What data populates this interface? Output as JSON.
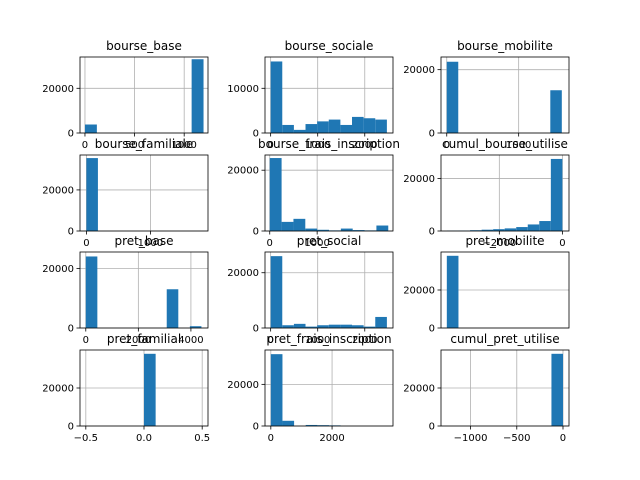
{
  "chart_data": [
    {
      "type": "bar",
      "title": "bourse_base",
      "grid": true,
      "xlim": [
        -50,
        1240
      ],
      "ylim": [
        0,
        34000
      ],
      "xticks": [
        0,
        500,
        1000
      ],
      "xtick_labels": [
        "0",
        "500",
        "1000"
      ],
      "yticks": [
        0,
        20000
      ],
      "ytick_labels": [
        "0",
        "20000"
      ],
      "bars": [
        {
          "x0": 0,
          "x1": 120,
          "value": 3800
        },
        {
          "x0": 1075,
          "x1": 1195,
          "value": 33000
        }
      ]
    },
    {
      "type": "bar",
      "title": "bourse_sociale",
      "grid": true,
      "xlim": [
        -120,
        2600
      ],
      "ylim": [
        0,
        17000
      ],
      "xticks": [
        0,
        1000,
        2000
      ],
      "xtick_labels": [
        "0",
        "1000",
        "2000"
      ],
      "yticks": [
        0,
        10000
      ],
      "ytick_labels": [
        "0",
        "10000"
      ],
      "bars": [
        {
          "x0": 0,
          "x1": 247,
          "value": 16000
        },
        {
          "x0": 247,
          "x1": 494,
          "value": 1800
        },
        {
          "x0": 494,
          "x1": 741,
          "value": 700
        },
        {
          "x0": 741,
          "x1": 988,
          "value": 2000
        },
        {
          "x0": 988,
          "x1": 1235,
          "value": 2600
        },
        {
          "x0": 1235,
          "x1": 1482,
          "value": 3000
        },
        {
          "x0": 1482,
          "x1": 1729,
          "value": 1800
        },
        {
          "x0": 1729,
          "x1": 1976,
          "value": 3600
        },
        {
          "x0": 1976,
          "x1": 2223,
          "value": 3300
        },
        {
          "x0": 2223,
          "x1": 2470,
          "value": 3000
        }
      ]
    },
    {
      "type": "bar",
      "title": "bourse_mobilite",
      "grid": true,
      "xlim": [
        -80,
        1700
      ],
      "ylim": [
        0,
        24000
      ],
      "xticks": [
        0,
        1000
      ],
      "xtick_labels": [
        "0",
        "1000"
      ],
      "yticks": [
        0,
        20000
      ],
      "ytick_labels": [
        "0",
        "20000"
      ],
      "bars": [
        {
          "x0": 0,
          "x1": 160,
          "value": 22500
        },
        {
          "x0": 1440,
          "x1": 1600,
          "value": 13500
        }
      ]
    },
    {
      "type": "bar",
      "title": "bourse_familiale",
      "grid": true,
      "xlim": [
        -100,
        1900
      ],
      "ylim": [
        0,
        37000
      ],
      "xticks": [
        0,
        1000
      ],
      "xtick_labels": [
        "0",
        "1000"
      ],
      "yticks": [
        0,
        20000
      ],
      "ytick_labels": [
        "0",
        "20000"
      ],
      "bars": [
        {
          "x0": 0,
          "x1": 180,
          "value": 35500
        }
      ]
    },
    {
      "type": "bar",
      "title": "bourse_frais_inscription",
      "grid": true,
      "xlim": [
        -100,
        2600
      ],
      "ylim": [
        0,
        25000
      ],
      "xticks": [
        0,
        1000
      ],
      "xtick_labels": [
        "0",
        "1000"
      ],
      "yticks": [
        0,
        20000
      ],
      "ytick_labels": [
        "0",
        "20000"
      ],
      "bars": [
        {
          "x0": 0,
          "x1": 250,
          "value": 24000
        },
        {
          "x0": 250,
          "x1": 500,
          "value": 3000
        },
        {
          "x0": 500,
          "x1": 750,
          "value": 4000
        },
        {
          "x0": 750,
          "x1": 1000,
          "value": 800
        },
        {
          "x0": 1000,
          "x1": 1250,
          "value": 400
        },
        {
          "x0": 1250,
          "x1": 1500,
          "value": 200
        },
        {
          "x0": 1500,
          "x1": 1750,
          "value": 800
        },
        {
          "x0": 1750,
          "x1": 2000,
          "value": 300
        },
        {
          "x0": 2000,
          "x1": 2250,
          "value": 200
        },
        {
          "x0": 2250,
          "x1": 2500,
          "value": 1800
        }
      ]
    },
    {
      "type": "bar",
      "title": "cumul_bourse_utilise",
      "grid": true,
      "xlim": [
        -3850,
        210
      ],
      "ylim": [
        0,
        29000
      ],
      "xticks": [
        -2000,
        0
      ],
      "xtick_labels": [
        "−2000",
        "0"
      ],
      "yticks": [
        0,
        20000
      ],
      "ytick_labels": [
        "0",
        "20000"
      ],
      "bars": [
        {
          "x0": -3660,
          "x1": -3294,
          "value": 100
        },
        {
          "x0": -3294,
          "x1": -2928,
          "value": 150
        },
        {
          "x0": -2928,
          "x1": -2562,
          "value": 300
        },
        {
          "x0": -2562,
          "x1": -2196,
          "value": 500
        },
        {
          "x0": -2196,
          "x1": -1830,
          "value": 700
        },
        {
          "x0": -1830,
          "x1": -1464,
          "value": 1000
        },
        {
          "x0": -1464,
          "x1": -1098,
          "value": 1500
        },
        {
          "x0": -1098,
          "x1": -732,
          "value": 2500
        },
        {
          "x0": -732,
          "x1": -366,
          "value": 3800
        },
        {
          "x0": -366,
          "x1": 0,
          "value": 27500
        }
      ]
    },
    {
      "type": "bar",
      "title": "pret_base",
      "grid": true,
      "xlim": [
        -220,
        4650
      ],
      "ylim": [
        0,
        25500
      ],
      "xticks": [
        0,
        2000,
        4000
      ],
      "xtick_labels": [
        "0",
        "2000",
        "4000"
      ],
      "yticks": [
        0,
        20000
      ],
      "ytick_labels": [
        "0",
        "20000"
      ],
      "bars": [
        {
          "x0": 0,
          "x1": 440,
          "value": 24000
        },
        {
          "x0": 3080,
          "x1": 3520,
          "value": 13000
        },
        {
          "x0": 3960,
          "x1": 4400,
          "value": 600
        }
      ]
    },
    {
      "type": "bar",
      "title": "pret_social",
      "grid": true,
      "xlim": [
        -120,
        2600
      ],
      "ylim": [
        0,
        27500
      ],
      "xticks": [
        0,
        1000,
        2000
      ],
      "xtick_labels": [
        "0",
        "1000",
        "2000"
      ],
      "yticks": [
        0,
        20000
      ],
      "ytick_labels": [
        "0",
        "20000"
      ],
      "bars": [
        {
          "x0": 0,
          "x1": 247,
          "value": 26000
        },
        {
          "x0": 247,
          "x1": 494,
          "value": 1000
        },
        {
          "x0": 494,
          "x1": 741,
          "value": 1500
        },
        {
          "x0": 741,
          "x1": 988,
          "value": 500
        },
        {
          "x0": 988,
          "x1": 1235,
          "value": 1000
        },
        {
          "x0": 1235,
          "x1": 1482,
          "value": 1200
        },
        {
          "x0": 1482,
          "x1": 1729,
          "value": 1200
        },
        {
          "x0": 1729,
          "x1": 1976,
          "value": 1000
        },
        {
          "x0": 1976,
          "x1": 2223,
          "value": 500
        },
        {
          "x0": 2223,
          "x1": 2470,
          "value": 4000
        }
      ]
    },
    {
      "type": "bar",
      "title": "pret_mobilite",
      "grid": true,
      "xlim": [
        -0.05,
        1.05
      ],
      "ylim": [
        0,
        40000
      ],
      "xticks": [],
      "xtick_labels": [],
      "yticks": [
        0,
        20000
      ],
      "ytick_labels": [
        "0",
        "20000"
      ],
      "bars": [
        {
          "x0": 0,
          "x1": 0.1,
          "value": 38000
        }
      ]
    },
    {
      "type": "bar",
      "title": "pret_familial",
      "grid": true,
      "xlim": [
        -0.55,
        0.55
      ],
      "ylim": [
        0,
        40000
      ],
      "xticks": [
        -0.5,
        0.0,
        0.5
      ],
      "xtick_labels": [
        "−0.5",
        "0.0",
        "0.5"
      ],
      "yticks": [
        0,
        20000
      ],
      "ytick_labels": [
        "0",
        "20000"
      ],
      "bars": [
        {
          "x0": 0,
          "x1": 0.1,
          "value": 38000
        }
      ]
    },
    {
      "type": "bar",
      "title": "pret_frais_inscription",
      "grid": true,
      "xlim": [
        -190,
        3990
      ],
      "ylim": [
        0,
        36500
      ],
      "xticks": [
        0,
        2000
      ],
      "xtick_labels": [
        "0",
        "2000"
      ],
      "yticks": [
        0,
        20000
      ],
      "ytick_labels": [
        "0",
        "20000"
      ],
      "bars": [
        {
          "x0": 0,
          "x1": 380,
          "value": 34500
        },
        {
          "x0": 380,
          "x1": 760,
          "value": 2500
        },
        {
          "x0": 1140,
          "x1": 1520,
          "value": 500
        },
        {
          "x0": 1520,
          "x1": 1900,
          "value": 400
        },
        {
          "x0": 1900,
          "x1": 2280,
          "value": 300
        }
      ]
    },
    {
      "type": "bar",
      "title": "cumul_pret_utilise",
      "grid": true,
      "xlim": [
        -1320,
        65
      ],
      "ylim": [
        0,
        40000
      ],
      "xticks": [
        -1000,
        -500,
        0
      ],
      "xtick_labels": [
        "−1000",
        "−500",
        "0"
      ],
      "yticks": [
        0,
        20000
      ],
      "ytick_labels": [
        "0",
        "20000"
      ],
      "bars": [
        {
          "x0": -125,
          "x1": 0,
          "value": 38000
        }
      ]
    }
  ],
  "colors": {
    "bar": "#1f77b4",
    "grid": "#b0b0b0",
    "axes": "#000000"
  }
}
